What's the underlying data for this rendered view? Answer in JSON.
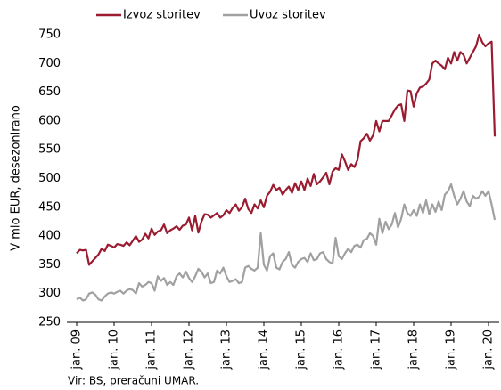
{
  "chart_data": {
    "type": "line",
    "y_label": "V mio EUR, desezonirano",
    "source": "Vir: BS, preračuni UMAR.",
    "categories": [
      "jan. 09",
      null,
      null,
      null,
      null,
      null,
      null,
      null,
      null,
      null,
      null,
      null,
      "jan. 10",
      null,
      null,
      null,
      null,
      null,
      null,
      null,
      null,
      null,
      null,
      null,
      "jan. 11",
      null,
      null,
      null,
      null,
      null,
      null,
      null,
      null,
      null,
      null,
      null,
      "jan. 12",
      null,
      null,
      null,
      null,
      null,
      null,
      null,
      null,
      null,
      null,
      null,
      "jan. 13",
      null,
      null,
      null,
      null,
      null,
      null,
      null,
      null,
      null,
      null,
      null,
      "jan. 14",
      null,
      null,
      null,
      null,
      null,
      null,
      null,
      null,
      null,
      null,
      null,
      "jan. 15",
      null,
      null,
      null,
      null,
      null,
      null,
      null,
      null,
      null,
      null,
      null,
      "jan. 16",
      null,
      null,
      null,
      null,
      null,
      null,
      null,
      null,
      null,
      null,
      null,
      "jan. 17",
      null,
      null,
      null,
      null,
      null,
      null,
      null,
      null,
      null,
      null,
      null,
      "jan. 18",
      null,
      null,
      null,
      null,
      null,
      null,
      null,
      null,
      null,
      null,
      null,
      "jan. 19",
      null,
      null,
      null,
      null,
      null,
      null,
      null,
      null,
      null,
      null,
      null,
      "jan. 20",
      null,
      null
    ],
    "series": [
      {
        "name": "Izvoz storitev",
        "color": "#9b1b30",
        "values": [
          370,
          376,
          375,
          376,
          350,
          356,
          362,
          368,
          378,
          374,
          385,
          383,
          380,
          386,
          385,
          383,
          389,
          384,
          392,
          400,
          390,
          394,
          404,
          396,
          413,
          402,
          408,
          410,
          420,
          405,
          410,
          413,
          417,
          411,
          418,
          420,
          432,
          410,
          435,
          406,
          425,
          438,
          437,
          432,
          436,
          440,
          432,
          436,
          445,
          440,
          449,
          455,
          444,
          450,
          465,
          447,
          440,
          455,
          448,
          462,
          450,
          470,
          477,
          489,
          480,
          484,
          472,
          480,
          486,
          475,
          492,
          480,
          495,
          480,
          500,
          487,
          508,
          490,
          495,
          502,
          510,
          490,
          512,
          518,
          515,
          542,
          530,
          515,
          525,
          520,
          532,
          565,
          570,
          578,
          566,
          575,
          600,
          582,
          600,
          600,
          600,
          610,
          620,
          627,
          629,
          600,
          653,
          652,
          625,
          648,
          658,
          660,
          665,
          672,
          700,
          705,
          700,
          696,
          690,
          710,
          700,
          720,
          705,
          720,
          715,
          700,
          710,
          720,
          730,
          750,
          737,
          730,
          735,
          738,
          573
        ]
      },
      {
        "name": "Uvoz storitev",
        "color": "#a0a0a0",
        "values": [
          290,
          293,
          288,
          290,
          300,
          302,
          298,
          290,
          288,
          295,
          300,
          302,
          300,
          303,
          305,
          300,
          305,
          308,
          306,
          300,
          318,
          312,
          315,
          320,
          318,
          305,
          330,
          322,
          327,
          315,
          320,
          315,
          330,
          335,
          328,
          338,
          327,
          320,
          330,
          343,
          338,
          328,
          335,
          318,
          320,
          340,
          335,
          345,
          330,
          320,
          322,
          325,
          318,
          320,
          345,
          348,
          343,
          340,
          345,
          405,
          350,
          340,
          365,
          370,
          345,
          342,
          355,
          360,
          372,
          350,
          345,
          355,
          360,
          362,
          355,
          370,
          358,
          360,
          370,
          372,
          360,
          355,
          352,
          397,
          365,
          360,
          370,
          378,
          372,
          383,
          385,
          380,
          393,
          395,
          405,
          400,
          385,
          430,
          405,
          425,
          412,
          420,
          440,
          415,
          430,
          455,
          440,
          435,
          445,
          435,
          455,
          440,
          462,
          438,
          455,
          442,
          460,
          445,
          472,
          478,
          490,
          470,
          455,
          465,
          478,
          460,
          452,
          470,
          465,
          468,
          478,
          470,
          478,
          455,
          428
        ]
      }
    ],
    "ylim": [
      250,
      750
    ],
    "yticks": [
      250,
      300,
      350,
      400,
      450,
      500,
      550,
      600,
      650,
      700,
      750
    ]
  }
}
